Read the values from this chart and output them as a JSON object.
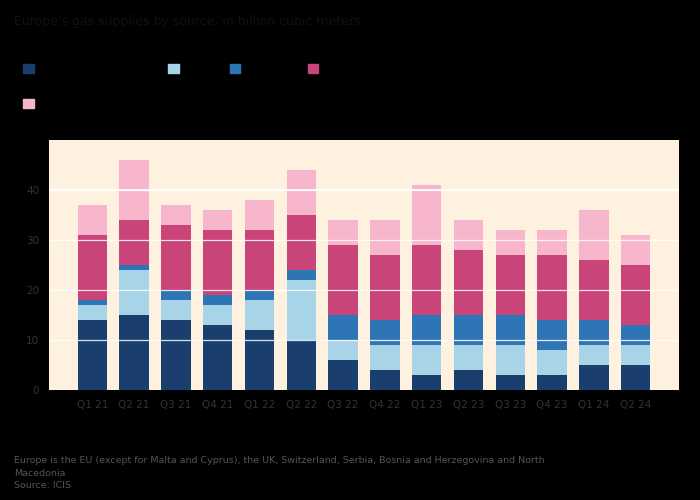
{
  "categories": [
    "Q1 21",
    "Q2 21",
    "Q3 21",
    "Q4 21",
    "Q1 22",
    "Q2 22",
    "Q3 22",
    "Q4 22",
    "Q1 23",
    "Q2 23",
    "Q3 23",
    "Q4 23",
    "Q1 24",
    "Q2 24"
  ],
  "series": {
    "Russian pipeline + LNG": [
      14,
      15,
      14,
      13,
      12,
      10,
      6,
      4,
      3,
      4,
      3,
      3,
      5,
      5
    ],
    "US LNG": [
      3,
      9,
      4,
      4,
      6,
      12,
      4,
      5,
      6,
      5,
      6,
      5,
      4,
      4
    ],
    "Other LNG": [
      1,
      1,
      2,
      2,
      2,
      2,
      5,
      5,
      6,
      6,
      6,
      6,
      5,
      4
    ],
    "Other pipepeline": [
      13,
      9,
      13,
      13,
      12,
      11,
      14,
      13,
      14,
      13,
      12,
      13,
      12,
      12
    ],
    "Domestic Production": [
      6,
      12,
      4,
      4,
      6,
      9,
      5,
      7,
      12,
      6,
      5,
      5,
      10,
      6
    ]
  },
  "colors": {
    "Russian pipeline + LNG": "#1a3f6f",
    "US LNG": "#a8d4e8",
    "Other LNG": "#2e75b6",
    "Other pipepeline": "#c94478",
    "Domestic Production": "#f7b6cc"
  },
  "title": "Europe's gas supplies by source, in billion cubic meters",
  "ylim": [
    0,
    50
  ],
  "yticks": [
    0,
    10,
    20,
    30,
    40
  ],
  "footnote1": "Europe is the EU (except for Malta and Cyprus), the UK, Switzerland, Serbia, Bosnia and Herzegovina and North",
  "footnote2": "Macedonia",
  "footnote3": "Source: ICIS",
  "page_bg": "#000000",
  "chart_bg": "#FFF1E0",
  "text_color": "#333333",
  "grid_color": "#ffffff"
}
